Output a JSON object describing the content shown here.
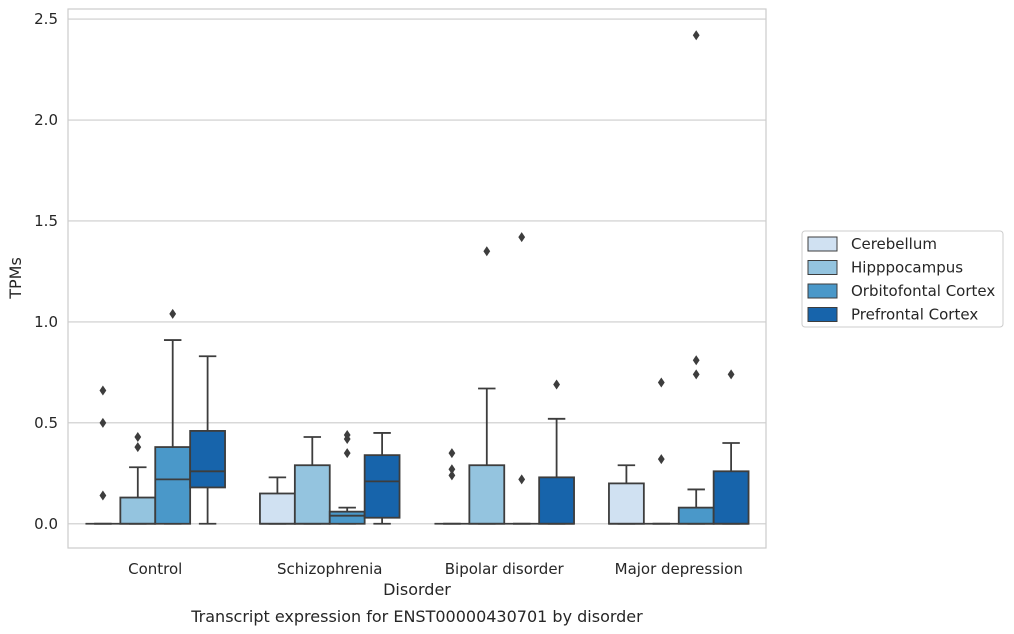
{
  "chart_data": {
    "type": "box",
    "caption": "Transcript expression for ENST00000430701 by disorder",
    "xlabel": "Disorder",
    "ylabel": "TPMs",
    "ylim": [
      -0.12,
      2.55
    ],
    "yticks": [
      "0.0",
      "0.5",
      "1.0",
      "1.5",
      "2.0",
      "2.5"
    ],
    "ytick_values": [
      0,
      0.5,
      1.0,
      1.5,
      2.0,
      2.5
    ],
    "grid": true,
    "legend_position": "right",
    "categories": [
      "Control",
      "Schizophrenia",
      "Bipolar disorder",
      "Major depression"
    ],
    "series": [
      {
        "name": "Cerebellum",
        "color": "#d0e1f2",
        "boxes": [
          {
            "q1": 0,
            "median": 0,
            "q3": 0,
            "whislo": 0,
            "whishi": 0,
            "fliers": [
              0.14,
              0.5,
              0.66
            ]
          },
          {
            "q1": 0,
            "median": 0,
            "q3": 0.15,
            "whislo": 0,
            "whishi": 0.23,
            "fliers": []
          },
          {
            "q1": 0,
            "median": 0,
            "q3": 0,
            "whislo": 0,
            "whishi": 0,
            "fliers": [
              0.24,
              0.27,
              0.35
            ]
          },
          {
            "q1": 0,
            "median": 0,
            "q3": 0.2,
            "whislo": 0,
            "whishi": 0.29,
            "fliers": []
          }
        ]
      },
      {
        "name": "Hipppocampus",
        "color": "#94c4df",
        "boxes": [
          {
            "q1": 0,
            "median": 0,
            "q3": 0.13,
            "whislo": 0,
            "whishi": 0.28,
            "fliers": [
              0.38,
              0.43
            ]
          },
          {
            "q1": 0,
            "median": 0,
            "q3": 0.29,
            "whislo": 0,
            "whishi": 0.43,
            "fliers": []
          },
          {
            "q1": 0,
            "median": 0,
            "q3": 0.29,
            "whislo": 0,
            "whishi": 0.67,
            "fliers": [
              1.35
            ]
          },
          {
            "q1": 0,
            "median": 0,
            "q3": 0,
            "whislo": 0,
            "whishi": 0,
            "fliers": [
              0.32,
              0.7
            ]
          }
        ]
      },
      {
        "name": "Orbitofontal Cortex",
        "color": "#4a98c9",
        "boxes": [
          {
            "q1": 0,
            "median": 0.22,
            "q3": 0.38,
            "whislo": 0,
            "whishi": 0.91,
            "fliers": [
              1.04
            ]
          },
          {
            "q1": 0,
            "median": 0.04,
            "q3": 0.06,
            "whislo": 0,
            "whishi": 0.08,
            "fliers": [
              0.35,
              0.42,
              0.44
            ]
          },
          {
            "q1": 0,
            "median": 0,
            "q3": 0,
            "whislo": 0,
            "whishi": 0,
            "fliers": [
              0.22,
              1.42
            ]
          },
          {
            "q1": 0,
            "median": 0,
            "q3": 0.08,
            "whislo": 0,
            "whishi": 0.17,
            "fliers": [
              0.74,
              0.81,
              2.42
            ]
          }
        ]
      },
      {
        "name": "Prefrontal Cortex",
        "color": "#1764ab",
        "boxes": [
          {
            "q1": 0.18,
            "median": 0.26,
            "q3": 0.46,
            "whislo": 0,
            "whishi": 0.83,
            "fliers": []
          },
          {
            "q1": 0.03,
            "median": 0.21,
            "q3": 0.34,
            "whislo": 0,
            "whishi": 0.45,
            "fliers": []
          },
          {
            "q1": 0,
            "median": 0,
            "q3": 0.23,
            "whislo": 0,
            "whishi": 0.52,
            "fliers": [
              0.69
            ]
          },
          {
            "q1": 0,
            "median": 0,
            "q3": 0.26,
            "whislo": 0,
            "whishi": 0.4,
            "fliers": [
              0.74
            ]
          }
        ]
      }
    ]
  }
}
